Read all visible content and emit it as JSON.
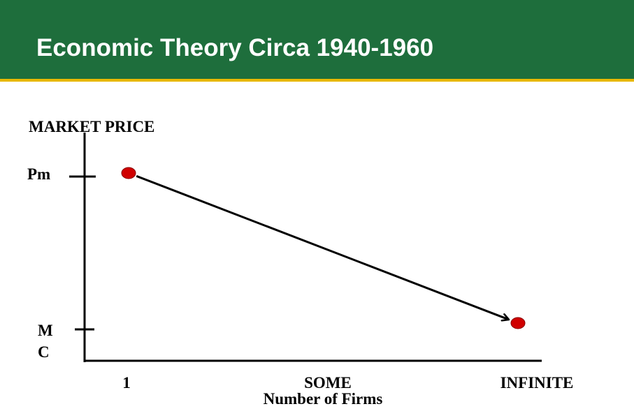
{
  "slide": {
    "title": "Economic Theory Circa 1940-1960"
  },
  "colors": {
    "header_bg": "#1e6e3c",
    "header_rule": "#e8b800",
    "point": "#d00000"
  },
  "chart_data": {
    "type": "line",
    "title": "",
    "xlabel": "Number of Firms",
    "ylabel": "MARKET PRICE",
    "x_categories": [
      "1",
      "SOME",
      "INFINITE"
    ],
    "y_levels": [
      "MC",
      "Pm"
    ],
    "y_tick_labels": [
      "M",
      "C",
      "Pm"
    ],
    "grid": false,
    "legend": "none",
    "series": [
      {
        "points": [
          {
            "x": "1",
            "y": "Pm"
          },
          {
            "x": "INFINITE",
            "y": "MC"
          }
        ],
        "arrow": "end"
      }
    ]
  }
}
